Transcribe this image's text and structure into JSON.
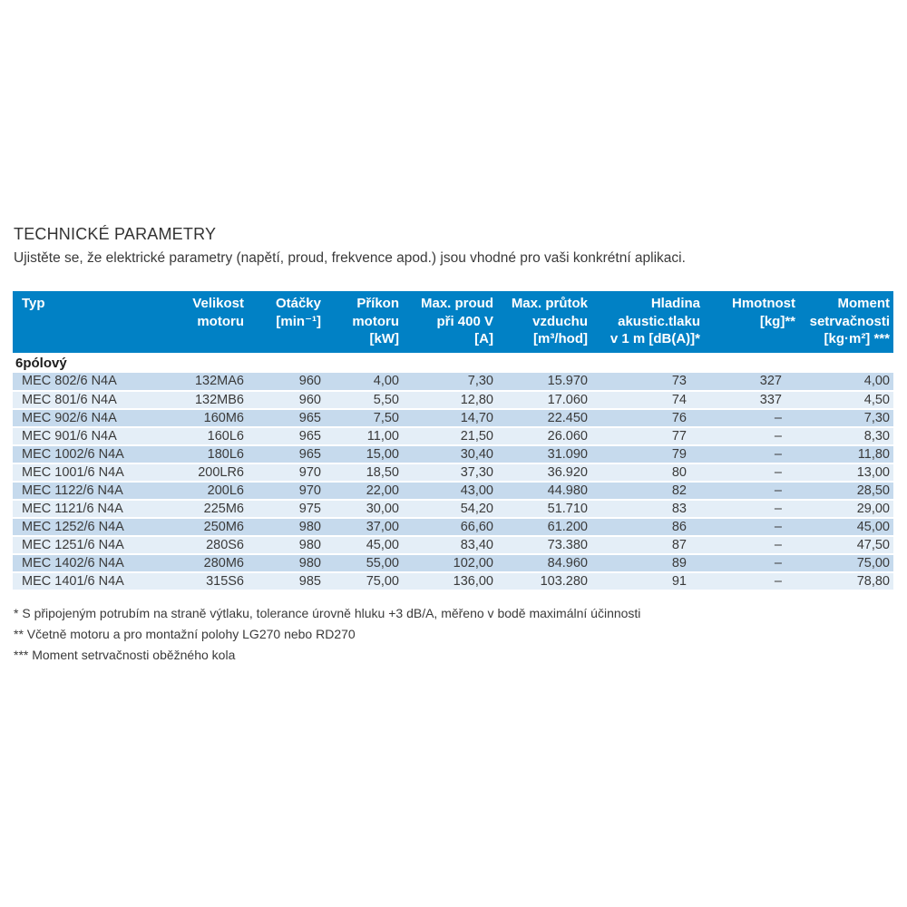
{
  "page": {
    "title": "TECHNICKÉ PARAMETRY",
    "subtitle": "Ujistěte se, že elektrické parametry (napětí, proud, frekvence apod.) jsou vhodné pro vaši konkrétní aplikaci."
  },
  "colors": {
    "header_bg": "#0181c5",
    "row_odd": "#c6daed",
    "row_even": "#e4eef7",
    "header_text": "#ffffff",
    "body_text": "#3a3a3a"
  },
  "table": {
    "section_label": "6pólový",
    "columns": [
      {
        "id": "typ",
        "lines": [
          "Typ"
        ],
        "align": "left"
      },
      {
        "id": "velikost-motoru",
        "lines": [
          "Velikost",
          "motoru"
        ],
        "align": "right"
      },
      {
        "id": "otacky",
        "lines": [
          "Otáčky",
          "[min⁻¹]"
        ],
        "align": "right"
      },
      {
        "id": "prikon-motoru",
        "lines": [
          "Příkon",
          "motoru",
          "[kW]"
        ],
        "align": "right"
      },
      {
        "id": "max-proud-pri-400v",
        "lines": [
          "Max. proud",
          "při 400 V",
          "[A]"
        ],
        "align": "right"
      },
      {
        "id": "max-prutok-vzduchu",
        "lines": [
          "Max. průtok",
          "vzduchu",
          "[m³/hod]"
        ],
        "align": "right"
      },
      {
        "id": "hladina-akustickeho-tlaku",
        "lines": [
          "Hladina",
          "akustic.tlaku",
          "v 1 m [dB(A)]*"
        ],
        "align": "right"
      },
      {
        "id": "hmotnost",
        "lines": [
          "Hmotnost",
          "[kg]**"
        ],
        "align": "right"
      },
      {
        "id": "moment-setrvacnosti",
        "lines": [
          "Moment",
          "setrvačnosti",
          "[kg·m²] ***"
        ],
        "align": "right"
      }
    ],
    "rows": [
      [
        "MEC 802/6 N4A",
        "132MA6",
        "960",
        "4,00",
        "7,30",
        "15.970",
        "73",
        "327",
        "4,00"
      ],
      [
        "MEC 801/6 N4A",
        "132MB6",
        "960",
        "5,50",
        "12,80",
        "17.060",
        "74",
        "337",
        "4,50"
      ],
      [
        "MEC 902/6 N4A",
        "160M6",
        "965",
        "7,50",
        "14,70",
        "22.450",
        "76",
        "–",
        "7,30"
      ],
      [
        "MEC 901/6 N4A",
        "160L6",
        "965",
        "11,00",
        "21,50",
        "26.060",
        "77",
        "–",
        "8,30"
      ],
      [
        "MEC 1002/6 N4A",
        "180L6",
        "965",
        "15,00",
        "30,40",
        "31.090",
        "79",
        "–",
        "11,80"
      ],
      [
        "MEC 1001/6 N4A",
        "200LR6",
        "970",
        "18,50",
        "37,30",
        "36.920",
        "80",
        "–",
        "13,00"
      ],
      [
        "MEC 1122/6 N4A",
        "200L6",
        "970",
        "22,00",
        "43,00",
        "44.980",
        "82",
        "–",
        "28,50"
      ],
      [
        "MEC 1121/6 N4A",
        "225M6",
        "975",
        "30,00",
        "54,20",
        "51.710",
        "83",
        "–",
        "29,00"
      ],
      [
        "MEC 1252/6 N4A",
        "250M6",
        "980",
        "37,00",
        "66,60",
        "61.200",
        "86",
        "–",
        "45,00"
      ],
      [
        "MEC 1251/6 N4A",
        "280S6",
        "980",
        "45,00",
        "83,40",
        "73.380",
        "87",
        "–",
        "47,50"
      ],
      [
        "MEC 1402/6 N4A",
        "280M6",
        "980",
        "55,00",
        "102,00",
        "84.960",
        "89",
        "–",
        "75,00"
      ],
      [
        "MEC 1401/6 N4A",
        "315S6",
        "985",
        "75,00",
        "136,00",
        "103.280",
        "91",
        "–",
        "78,80"
      ]
    ]
  },
  "footnotes": [
    "* S připojeným potrubím na straně výtlaku, tolerance úrovně hluku +3 dB/A, měřeno v bodě maximální účinnosti",
    "** Včetně motoru a pro montažní polohy LG270 nebo RD270",
    "*** Moment setrvačnosti oběžného kola"
  ]
}
